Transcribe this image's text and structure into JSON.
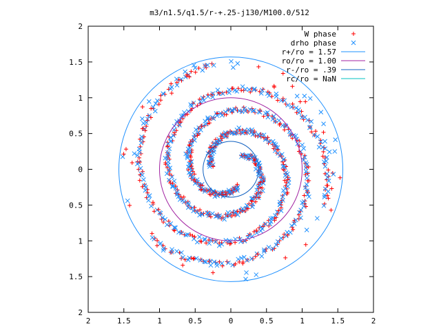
{
  "chart_data": {
    "type": "scatter",
    "title": "m3/n1.5/q1.5/r-+.25-j130/M100.0/512",
    "xlim": [
      2,
      -2
    ],
    "ylim": [
      2,
      -2
    ],
    "x_tick_labels": [
      "2",
      "1.5",
      "1",
      "0.5",
      "0",
      "0.5",
      "1",
      "1.5",
      "2"
    ],
    "y_tick_labels": [
      "2",
      "1.5",
      "1",
      "0.5",
      "0",
      "0.5",
      "1",
      "1.5",
      "2"
    ],
    "x_tick_values": [
      -2,
      -1.5,
      -1,
      -0.5,
      0,
      0.5,
      1,
      1.5,
      2
    ],
    "y_tick_values": [
      2,
      1.5,
      1,
      0.5,
      0,
      -0.5,
      -1,
      -1.5,
      -2
    ],
    "grid": false,
    "legend_position": "top-right",
    "colors": {
      "w_phase": "#ff0000",
      "drho_phase": "#1e90ff",
      "r_plus": "#1e90ff",
      "r_o": "#a020a0",
      "r_minus": "#1060c0",
      "r_c": "#00c0c0",
      "axes": "#000000"
    },
    "series": [
      {
        "name": "W phase",
        "marker": "plus",
        "color": "#ff0000"
      },
      {
        "name": "drho phase",
        "marker": "cross",
        "color": "#1e90ff"
      }
    ],
    "circles": [
      {
        "name": "r+/ro = 1.57",
        "radius": 1.57,
        "color": "#1e90ff"
      },
      {
        "name": "ro/ro = 1.00",
        "radius": 1.0,
        "color": "#a020a0"
      },
      {
        "name": "r-/ro = .39",
        "radius": 0.39,
        "color": "#1060c0"
      },
      {
        "name": "rc/ro = NaN",
        "radius": null,
        "color": "#00c0c0"
      }
    ],
    "spiral_arms": [
      {
        "r_start": 1.5,
        "r_end": 0.28,
        "theta_start_deg": 100,
        "turns": 1.2
      },
      {
        "r_start": 1.45,
        "r_end": 0.26,
        "theta_start_deg": 220,
        "turns": 1.2
      },
      {
        "r_start": 1.4,
        "r_end": 0.27,
        "theta_start_deg": 340,
        "turns": 1.2
      }
    ]
  }
}
